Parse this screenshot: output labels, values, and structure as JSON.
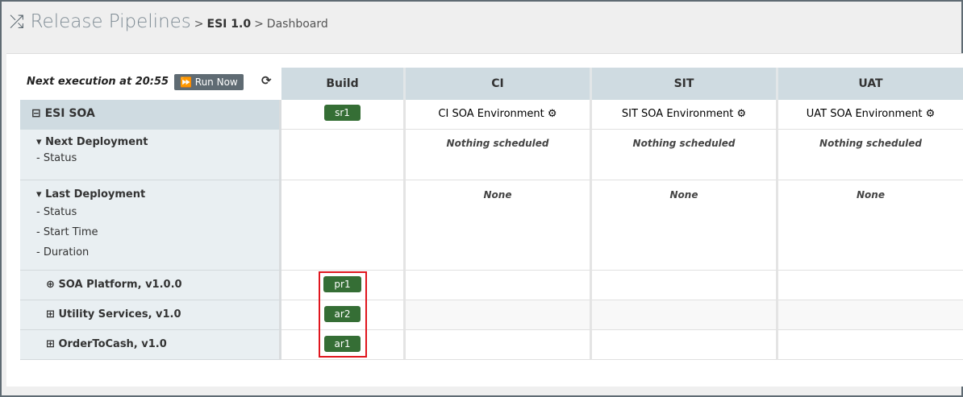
{
  "header": {
    "title": "Release Pipelines",
    "crumb1": "ESI 1.0",
    "crumb2": "Dashboard",
    "sep": ">"
  },
  "toolbar": {
    "next_execution": "Next execution at 20:55",
    "run_now": "Run Now"
  },
  "columns": [
    "Build",
    "CI",
    "SIT",
    "UAT"
  ],
  "group": {
    "name": "ESI SOA",
    "build": "sr1",
    "envs": [
      "CI SOA Environment",
      "SIT SOA Environment",
      "UAT SOA Environment"
    ]
  },
  "next_deployment": {
    "label": "Next Deployment",
    "fields": [
      "- Status"
    ],
    "values": [
      "Nothing scheduled",
      "Nothing scheduled",
      "Nothing scheduled"
    ]
  },
  "last_deployment": {
    "label": "Last Deployment",
    "fields": [
      "- Status",
      "- Start Time",
      "- Duration"
    ],
    "values": [
      "None",
      "None",
      "None"
    ]
  },
  "components": [
    {
      "name": "SOA Platform, v1.0.0",
      "build": "pr1",
      "icon": "cube-icon"
    },
    {
      "name": "Utility Services, v1.0",
      "build": "ar2",
      "icon": "briefcase-icon"
    },
    {
      "name": "OrderToCash, v1.0",
      "build": "ar1",
      "icon": "briefcase-icon"
    }
  ],
  "colors": {
    "badge": "#356e35",
    "header": "#cfdbe1",
    "highlight": "#e0161e"
  }
}
